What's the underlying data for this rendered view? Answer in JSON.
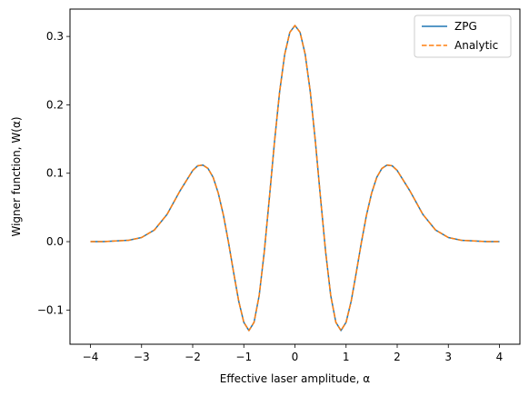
{
  "chart_data": {
    "type": "line",
    "title": "",
    "xlabel": "Effective laser amplitude, α",
    "ylabel": "Wigner function, W(α)",
    "xlim": [
      -4.4,
      4.4
    ],
    "ylim": [
      -0.15,
      0.34
    ],
    "xticks": [
      -4,
      -3,
      -2,
      -1,
      0,
      1,
      2,
      3,
      4
    ],
    "xtick_labels": [
      "−4",
      "−3",
      "−2",
      "−1",
      "0",
      "1",
      "2",
      "3",
      "4"
    ],
    "yticks": [
      -0.1,
      0.0,
      0.1,
      0.2,
      0.3
    ],
    "ytick_labels": [
      "−0.1",
      "0.0",
      "0.1",
      "0.2",
      "0.3"
    ],
    "grid": false,
    "legend_position": "top-right",
    "series": [
      {
        "name": "ZPG",
        "color": "#1f77b4",
        "style": "solid",
        "x": [
          -4.0,
          -3.75,
          -3.5,
          -3.25,
          -3.0,
          -2.75,
          -2.5,
          -2.25,
          -2.0,
          -1.9,
          -1.8,
          -1.7,
          -1.6,
          -1.5,
          -1.4,
          -1.3,
          -1.2,
          -1.1,
          -1.0,
          -0.9,
          -0.8,
          -0.7,
          -0.6,
          -0.5,
          -0.4,
          -0.3,
          -0.2,
          -0.1,
          0.0,
          0.1,
          0.2,
          0.3,
          0.4,
          0.5,
          0.6,
          0.7,
          0.8,
          0.9,
          1.0,
          1.1,
          1.2,
          1.3,
          1.4,
          1.5,
          1.6,
          1.7,
          1.8,
          1.9,
          2.0,
          2.25,
          2.5,
          2.75,
          3.0,
          3.25,
          3.5,
          3.75,
          4.0
        ],
        "y": [
          0.0,
          0.0,
          0.001,
          0.002,
          0.006,
          0.017,
          0.04,
          0.074,
          0.104,
          0.111,
          0.112,
          0.107,
          0.094,
          0.071,
          0.039,
          -0.001,
          -0.045,
          -0.087,
          -0.118,
          -0.13,
          -0.118,
          -0.079,
          -0.015,
          0.064,
          0.146,
          0.219,
          0.274,
          0.306,
          0.316,
          0.306,
          0.274,
          0.219,
          0.146,
          0.064,
          -0.015,
          -0.079,
          -0.118,
          -0.13,
          -0.118,
          -0.087,
          -0.045,
          -0.001,
          0.039,
          0.071,
          0.094,
          0.107,
          0.112,
          0.111,
          0.104,
          0.074,
          0.04,
          0.017,
          0.006,
          0.002,
          0.001,
          0.0,
          0.0
        ]
      },
      {
        "name": "Analytic",
        "color": "#ff7f0e",
        "style": "dashed",
        "x": [
          -4.0,
          -3.75,
          -3.5,
          -3.25,
          -3.0,
          -2.75,
          -2.5,
          -2.25,
          -2.0,
          -1.9,
          -1.8,
          -1.7,
          -1.6,
          -1.5,
          -1.4,
          -1.3,
          -1.2,
          -1.1,
          -1.0,
          -0.9,
          -0.8,
          -0.7,
          -0.6,
          -0.5,
          -0.4,
          -0.3,
          -0.2,
          -0.1,
          0.0,
          0.1,
          0.2,
          0.3,
          0.4,
          0.5,
          0.6,
          0.7,
          0.8,
          0.9,
          1.0,
          1.1,
          1.2,
          1.3,
          1.4,
          1.5,
          1.6,
          1.7,
          1.8,
          1.9,
          2.0,
          2.25,
          2.5,
          2.75,
          3.0,
          3.25,
          3.5,
          3.75,
          4.0
        ],
        "y": [
          0.0,
          0.0,
          0.001,
          0.002,
          0.006,
          0.017,
          0.04,
          0.074,
          0.104,
          0.111,
          0.112,
          0.107,
          0.094,
          0.071,
          0.039,
          -0.001,
          -0.045,
          -0.087,
          -0.118,
          -0.13,
          -0.118,
          -0.079,
          -0.015,
          0.064,
          0.146,
          0.219,
          0.274,
          0.306,
          0.316,
          0.306,
          0.274,
          0.219,
          0.146,
          0.064,
          -0.015,
          -0.079,
          -0.118,
          -0.13,
          -0.118,
          -0.087,
          -0.045,
          -0.001,
          0.039,
          0.071,
          0.094,
          0.107,
          0.112,
          0.111,
          0.104,
          0.074,
          0.04,
          0.017,
          0.006,
          0.002,
          0.001,
          0.0,
          0.0
        ]
      }
    ]
  }
}
